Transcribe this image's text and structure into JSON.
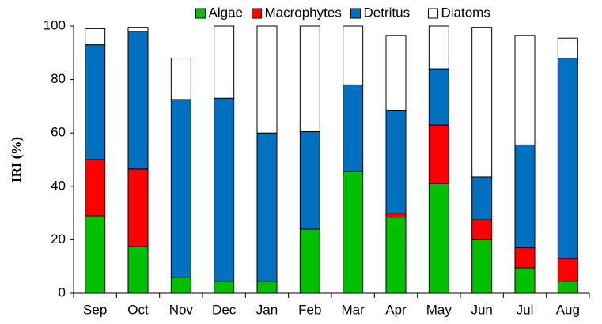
{
  "chart_data": {
    "type": "stacked_bar",
    "y_label": "IRI (%)",
    "categories": [
      "Sep",
      "Oct",
      "Nov",
      "Dec",
      "Jan",
      "Feb",
      "Mar",
      "Apr",
      "May",
      "Jun",
      "Jul",
      "Aug"
    ],
    "series": [
      {
        "name": "Algae",
        "color": "#00c000",
        "values": [
          29,
          17.5,
          6,
          4.5,
          4.5,
          24,
          45.5,
          28.5,
          41,
          20,
          9.5,
          4.5
        ]
      },
      {
        "name": "Macrophytes",
        "color": "#ff0000",
        "values": [
          21,
          29,
          0,
          0,
          0,
          0,
          0,
          1.5,
          22,
          7.5,
          7.5,
          8.5
        ]
      },
      {
        "name": "Detritus",
        "color": "#0070c0",
        "values": [
          43,
          51.5,
          66.5,
          68.5,
          55.5,
          36.5,
          32.5,
          38.5,
          21,
          16,
          38.5,
          75
        ]
      },
      {
        "name": "Diatoms",
        "color": "#ffffff",
        "values": [
          6,
          1.5,
          15.5,
          27,
          40,
          39.5,
          22,
          28,
          16,
          56,
          41,
          7.5
        ]
      }
    ],
    "ylim": [
      0,
      100
    ],
    "yticks": [
      0,
      20,
      40,
      60,
      80,
      100
    ],
    "legend": "top"
  }
}
